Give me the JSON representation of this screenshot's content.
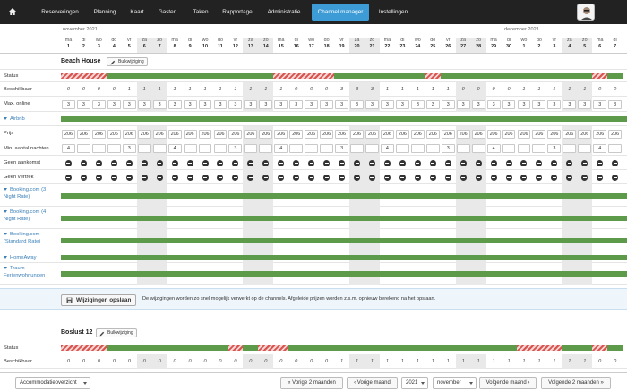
{
  "nav": {
    "home_icon": "home-icon",
    "items": [
      {
        "label": "Reserveringen",
        "active": false
      },
      {
        "label": "Planning",
        "active": false
      },
      {
        "label": "Kaart",
        "active": false
      },
      {
        "label": "Gasten",
        "active": false
      },
      {
        "label": "Taken",
        "active": false
      },
      {
        "label": "Rapportage",
        "active": false
      },
      {
        "label": "Administratie",
        "active": false
      },
      {
        "label": "Channel manager",
        "active": true
      },
      {
        "label": "Instellingen",
        "active": false
      }
    ]
  },
  "calendar": {
    "months": [
      {
        "label": "november 2021"
      },
      {
        "label": "december 2021"
      }
    ],
    "days": [
      {
        "name": "ma",
        "num": "1"
      },
      {
        "name": "di",
        "num": "2"
      },
      {
        "name": "wo",
        "num": "3"
      },
      {
        "name": "do",
        "num": "4"
      },
      {
        "name": "vr",
        "num": "5"
      },
      {
        "name": "za",
        "num": "6"
      },
      {
        "name": "zo",
        "num": "7"
      },
      {
        "name": "ma",
        "num": "8"
      },
      {
        "name": "di",
        "num": "9"
      },
      {
        "name": "wo",
        "num": "10"
      },
      {
        "name": "do",
        "num": "11"
      },
      {
        "name": "vr",
        "num": "12"
      },
      {
        "name": "za",
        "num": "13"
      },
      {
        "name": "zo",
        "num": "14"
      },
      {
        "name": "ma",
        "num": "15"
      },
      {
        "name": "di",
        "num": "16"
      },
      {
        "name": "wo",
        "num": "17"
      },
      {
        "name": "do",
        "num": "18"
      },
      {
        "name": "vr",
        "num": "19"
      },
      {
        "name": "za",
        "num": "20"
      },
      {
        "name": "zo",
        "num": "21"
      },
      {
        "name": "ma",
        "num": "22"
      },
      {
        "name": "di",
        "num": "23"
      },
      {
        "name": "wo",
        "num": "24"
      },
      {
        "name": "do",
        "num": "25"
      },
      {
        "name": "vr",
        "num": "26"
      },
      {
        "name": "za",
        "num": "27"
      },
      {
        "name": "zo",
        "num": "28"
      },
      {
        "name": "ma",
        "num": "29"
      },
      {
        "name": "di",
        "num": "30"
      },
      {
        "name": "wo",
        "num": "1"
      },
      {
        "name": "do",
        "num": "2"
      },
      {
        "name": "vr",
        "num": "3"
      },
      {
        "name": "za",
        "num": "4"
      },
      {
        "name": "zo",
        "num": "5"
      },
      {
        "name": "ma",
        "num": "6"
      },
      {
        "name": "di",
        "num": "7"
      }
    ]
  },
  "beach_house": {
    "title": "Beach House",
    "bulk_label": "Bulkwijziging",
    "status_label": "Status",
    "status_stripes": [
      [
        0,
        3
      ],
      [
        14,
        18
      ],
      [
        24,
        25
      ],
      [
        35,
        36
      ]
    ],
    "beschikbaar_label": "Beschikbaar",
    "beschikbaar": [
      "0",
      "0",
      "0",
      "0",
      "1",
      "1",
      "1",
      "1",
      "1",
      "1",
      "1",
      "1",
      "1",
      "1",
      "1",
      "0",
      "0",
      "0",
      "3",
      "3",
      "3",
      "1",
      "1",
      "1",
      "1",
      "1",
      "0",
      "0",
      "0",
      "0",
      "1",
      "1",
      "1",
      "1",
      "1",
      "0",
      "0"
    ],
    "max_online_label": "Max. online",
    "max_online": [
      "3",
      "3",
      "3",
      "3",
      "3",
      "3",
      "3",
      "3",
      "3",
      "3",
      "3",
      "3",
      "3",
      "3",
      "3",
      "3",
      "3",
      "3",
      "3",
      "3",
      "3",
      "3",
      "3",
      "3",
      "3",
      "3",
      "3",
      "3",
      "3",
      "3",
      "3",
      "3",
      "3",
      "3",
      "3",
      "3",
      "3"
    ],
    "airbnb_label": "Airbnb",
    "prijs_label": "Prijs",
    "prijs": [
      "206",
      "206",
      "206",
      "206",
      "206",
      "206",
      "206",
      "206",
      "206",
      "206",
      "206",
      "206",
      "206",
      "206",
      "206",
      "206",
      "206",
      "206",
      "206",
      "206",
      "206",
      "206",
      "206",
      "206",
      "206",
      "206",
      "206",
      "206",
      "206",
      "206",
      "206",
      "206",
      "206",
      "206",
      "206",
      "206",
      "206"
    ],
    "min_nights_label": "Min. aantal nachten",
    "min_nights": [
      "4",
      "",
      "",
      "",
      "3",
      "",
      "",
      "4",
      "",
      "",
      "",
      "3",
      "",
      "",
      "4",
      "",
      "",
      "",
      "3",
      "",
      "",
      "4",
      "",
      "",
      "",
      "3",
      "",
      "",
      "4",
      "",
      "",
      "",
      "3",
      "",
      "",
      "4",
      ""
    ],
    "geen_aankomst_label": "Geen aankomst",
    "geen_vertrek_label": "Geen vertrek",
    "channels": [
      {
        "label": "Booking.com (3 Night Rate)"
      },
      {
        "label": "Booking.com (4 Night Rate)"
      },
      {
        "label": "Booking.com (Standard Rate)"
      },
      {
        "label": "HomeAway"
      },
      {
        "label": "Traum-Ferienwohnungen"
      }
    ]
  },
  "save": {
    "button_label": "Wijzigingen opslaan",
    "note": "De wijzigingen worden zo snel mogelijk verwerkt op de channels. Afgeleide prijzen worden z.s.m. opnieuw berekend na het opslaan."
  },
  "boslust": {
    "title": "Boslust 12",
    "bulk_label": "Bulkwijziging",
    "status_label": "Status",
    "status_stripes": [
      [
        0,
        3
      ],
      [
        11,
        12
      ],
      [
        13,
        15
      ],
      [
        30,
        33
      ],
      [
        35,
        36
      ]
    ],
    "beschikbaar_label": "Beschikbaar",
    "beschikbaar": [
      "0",
      "0",
      "0",
      "0",
      "0",
      "0",
      "0",
      "0",
      "0",
      "0",
      "0",
      "0",
      "0",
      "0",
      "0",
      "0",
      "0",
      "0",
      "1",
      "1",
      "1",
      "1",
      "1",
      "1",
      "1",
      "1",
      "1",
      "1",
      "1",
      "1",
      "1",
      "1",
      "1",
      "1",
      "1",
      "0",
      "0"
    ]
  },
  "bottom": {
    "view_select": "Accommodatieoverzicht",
    "prev2": "« Vorige 2 maanden",
    "prev": "‹ Vorige maand",
    "year": "2021",
    "month": "november",
    "next": "Volgende maand ›",
    "next2": "Volgende 2 maanden »"
  }
}
